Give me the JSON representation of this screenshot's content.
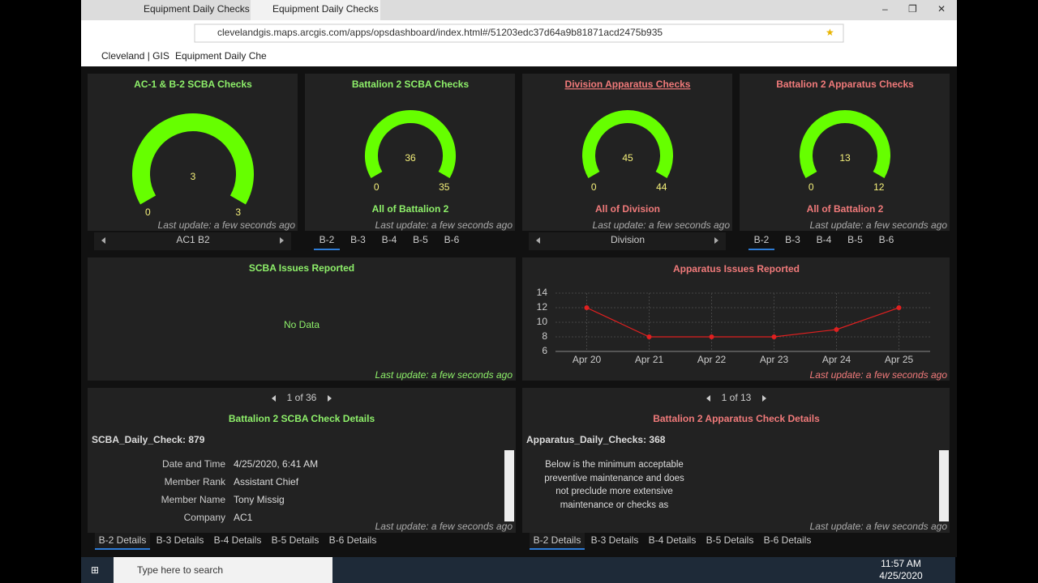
{
  "browser": {
    "tabs": [
      "Equipment Daily Checks",
      "Equipment Daily Checks"
    ],
    "url": "clevelandgis.maps.arcgis.com/apps/opsdashboard/index.html#/51203edc37d64a9b81871acd2475b935",
    "favorites": [
      "Cleveland | GIS",
      "Equipment Daily Che"
    ]
  },
  "gauges": [
    {
      "title": "AC-1 & B-2 SCBA Checks",
      "value": 3,
      "min": 0,
      "max": 3,
      "color": "#8ef06a",
      "last_update": "Last update: a few seconds ago",
      "selector": [
        "AC1 B2"
      ]
    },
    {
      "title": "Battalion 2 SCBA Checks",
      "value": 36,
      "min": 0,
      "max": 35,
      "color": "#8ef06a",
      "subtitle": "All of Battalion 2",
      "last_update": "Last update: a few seconds ago",
      "tabs": [
        "B-2",
        "B-3",
        "B-4",
        "B-5",
        "B-6"
      ]
    },
    {
      "title": "Division Apparatus Checks",
      "value": 45,
      "min": 0,
      "max": 44,
      "color": "#f07a7a",
      "subtitle": "All of Division",
      "last_update": "Last update: a few seconds ago",
      "selector": [
        "Division"
      ]
    },
    {
      "title": "Battalion 2 Apparatus Checks",
      "value": 13,
      "min": 0,
      "max": 12,
      "color": "#f07a7a",
      "subtitle": "All of Battalion 2",
      "last_update": "Last update: a few seconds ago",
      "tabs": [
        "B-2",
        "B-3",
        "B-4",
        "B-5",
        "B-6"
      ]
    }
  ],
  "scba_issues": {
    "title": "SCBA Issues Reported",
    "message": "No Data",
    "last_update": "Last update: a few seconds ago"
  },
  "chart_data": {
    "type": "line",
    "title": "Apparatus Issues Reported",
    "categories": [
      "Apr 20",
      "Apr 21",
      "Apr 22",
      "Apr 23",
      "Apr 24",
      "Apr 25"
    ],
    "values": [
      12,
      8,
      8,
      8,
      9,
      12
    ],
    "color": "#e02020",
    "ylim": [
      6,
      14
    ],
    "yticks": [
      6,
      8,
      10,
      12,
      14
    ],
    "grid": true,
    "last_update": "Last update: a few seconds ago"
  },
  "scba_details": {
    "pager": "1 of 36",
    "title": "Battalion 2 SCBA Check Details",
    "record": "SCBA_Daily_Check: 879",
    "fields": [
      [
        "Date and Time",
        "4/25/2020, 6:41 AM"
      ],
      [
        "Member Rank",
        "Assistant Chief"
      ],
      [
        "Member Name",
        "Tony Missig"
      ],
      [
        "Company",
        "AC1"
      ]
    ],
    "last_update": "Last update: a few seconds ago",
    "tabs": [
      "B-2 Details",
      "B-3 Details",
      "B-4 Details",
      "B-5 Details",
      "B-6 Details"
    ]
  },
  "apparatus_details": {
    "pager": "1 of 13",
    "title": "Battalion 2 Apparatus Check Details",
    "record": "Apparatus_Daily_Checks: 368",
    "text": "Below is the minimum acceptable preventive maintenance and does not preclude more extensive maintenance or checks as",
    "last_update": "Last update: a few seconds ago",
    "tabs": [
      "B-2 Details",
      "B-3 Details",
      "B-4 Details",
      "B-5 Details",
      "B-6 Details"
    ]
  },
  "taskbar": {
    "search": "Type here to search",
    "time": "11:57 AM",
    "date": "4/25/2020"
  }
}
